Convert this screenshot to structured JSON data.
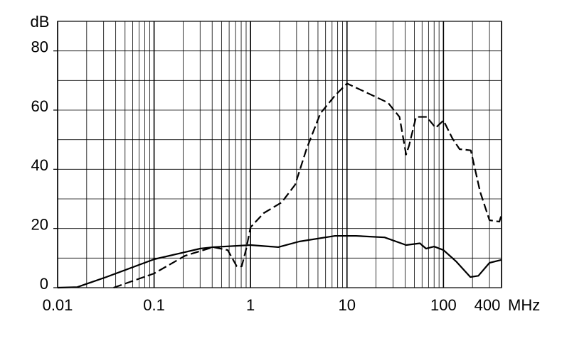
{
  "chart_data": {
    "type": "line",
    "x_scale": "log",
    "xlabel": "MHz",
    "ylabel": "dB",
    "xlim": [
      0.01,
      400
    ],
    "xticks": [
      0.01,
      0.1,
      1,
      10,
      100,
      400
    ],
    "ylim": [
      0,
      90
    ],
    "yticks": [
      0,
      20,
      40,
      60,
      80
    ],
    "ygrid": [
      10,
      20,
      30,
      40,
      50,
      60,
      70,
      80,
      90
    ],
    "minor_grid": true,
    "series": [
      {
        "color": "#000000",
        "dash": false,
        "x": [
          0.01,
          0.016,
          0.032,
          0.1,
          0.3,
          0.41,
          1,
          1.94,
          3.2,
          7.5,
          12.4,
          24.5,
          41,
          57,
          66,
          80,
          100,
          135,
          190,
          230,
          300,
          400
        ],
        "values": [
          0,
          0.2,
          3.6,
          9.6,
          13.2,
          13.7,
          14.4,
          13.7,
          15.6,
          17.5,
          17.5,
          17,
          14.4,
          15,
          13.2,
          13.9,
          12.7,
          8.9,
          3.6,
          4,
          8.4,
          9.4
        ]
      },
      {
        "color": "#000000",
        "dash": true,
        "x": [
          0.038,
          0.1,
          0.21,
          0.41,
          0.58,
          0.72,
          0.81,
          0.9,
          1,
          1.37,
          2.1,
          2.9,
          3.8,
          5.3,
          7.5,
          10,
          14.6,
          26.6,
          35,
          41,
          44,
          52,
          67,
          83,
          100,
          124,
          147,
          192,
          240,
          300,
          380,
          400
        ],
        "values": [
          0,
          4.8,
          10.8,
          13.7,
          12.7,
          7.2,
          7.2,
          13,
          20.4,
          25.2,
          28.8,
          34.8,
          46.8,
          58.9,
          64.9,
          69,
          66.5,
          62.5,
          57.7,
          45,
          48,
          57.7,
          57.7,
          54,
          56.5,
          50.4,
          46.8,
          46.4,
          32.4,
          22.8,
          22.3,
          24.7
        ]
      }
    ]
  }
}
